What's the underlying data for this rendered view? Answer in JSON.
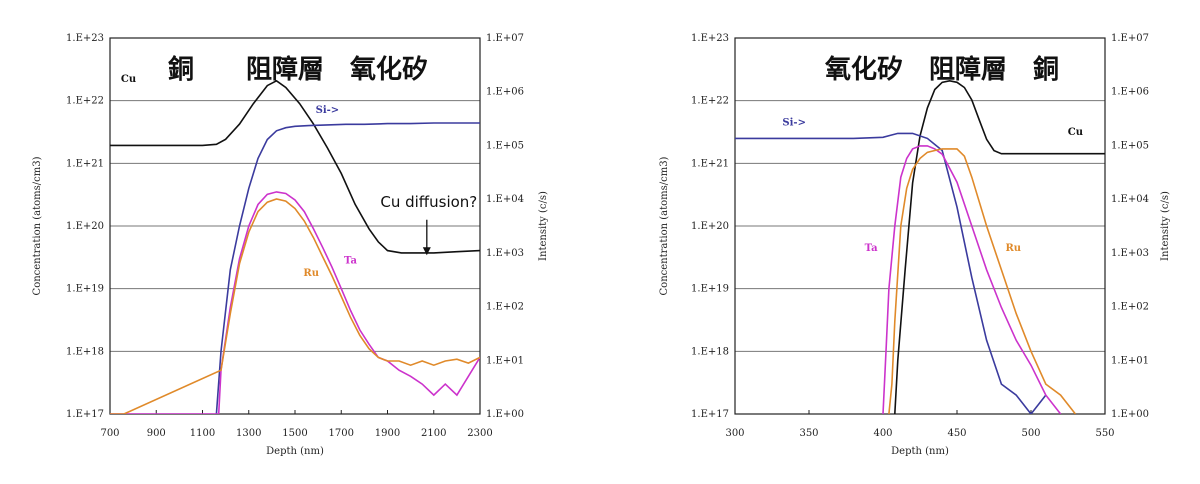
{
  "chart_data": [
    {
      "type": "line",
      "title": "銅　　阻障層　氧化矽",
      "xlabel": "Depth (nm)",
      "ylabel_left": "Concentration (atoms/cm3)",
      "ylabel_right": "Intensity (c/s)",
      "xlim": [
        700,
        2300
      ],
      "x_ticks": [
        "700",
        "900",
        "1100",
        "1300",
        "1500",
        "1700",
        "1900",
        "2100",
        "2300"
      ],
      "left_ticks": [
        "1.E+17",
        "1.E+18",
        "1.E+19",
        "1.E+20",
        "1.E+21",
        "1.E+22",
        "1.E+23"
      ],
      "right_ticks": [
        "1.E+00",
        "1.E+01",
        "1.E+02",
        "1.E+03",
        "1.E+04",
        "1.E+05",
        "1.E+06",
        "1.E+07"
      ],
      "left_log_range": [
        17,
        23
      ],
      "right_log_range": [
        0,
        7
      ],
      "annotation": "Cu diffusion?",
      "annotation_target_x": 2070,
      "series": [
        {
          "name": "Cu",
          "color": "#111111",
          "axis": "right",
          "x": [
            700,
            900,
            1100,
            1160,
            1200,
            1260,
            1320,
            1380,
            1420,
            1460,
            1520,
            1580,
            1640,
            1700,
            1760,
            1820,
            1860,
            1900,
            1960,
            2000,
            2100,
            2200,
            2300
          ],
          "y": [
            100000.0,
            100000.0,
            100000.0,
            105000.0,
            130000.0,
            250000.0,
            600000.0,
            1300000.0,
            1600000.0,
            1200000.0,
            600000.0,
            250000.0,
            90000.0,
            30000.0,
            8000.0,
            2800.0,
            1600.0,
            1100.0,
            1000.0,
            1000.0,
            1000.0,
            1050.0,
            1100.0
          ]
        },
        {
          "name": "Si->",
          "color": "#3b3b9e",
          "axis": "left",
          "x": [
            1160,
            1180,
            1220,
            1260,
            1300,
            1340,
            1380,
            1420,
            1460,
            1500,
            1560,
            1640,
            1720,
            1800,
            1900,
            2000,
            2100,
            2200,
            2300
          ],
          "y": [
            1e+17,
            1e+18,
            2e+19,
            1e+20,
            4e+20,
            1.2e+21,
            2.4e+21,
            3.3e+21,
            3.7e+21,
            3.9e+21,
            4e+21,
            4.1e+21,
            4.2e+21,
            4.2e+21,
            4.3e+21,
            4.3e+21,
            4.4e+21,
            4.4e+21,
            4.4e+21
          ]
        },
        {
          "name": "Ta",
          "color": "#cc33cc",
          "axis": "left",
          "x": [
            700,
            760,
            980,
            1000,
            1150,
            1170,
            1180,
            1220,
            1260,
            1300,
            1340,
            1380,
            1420,
            1460,
            1500,
            1540,
            1580,
            1620,
            1660,
            1700,
            1740,
            1780,
            1820,
            1860,
            1900,
            1950,
            2000,
            2050,
            2100,
            2150,
            2200,
            2250,
            2300
          ],
          "y": [
            1e+17,
            1e+17,
            1e+17,
            1e+17,
            1e+17,
            1e+17,
            5e+17,
            5e+18,
            3e+19,
            1e+20,
            2.2e+20,
            3.2e+20,
            3.5e+20,
            3.3e+20,
            2.6e+20,
            1.7e+20,
            9e+19,
            4.5e+19,
            2.2e+19,
            1e+19,
            4.5e+18,
            2.2e+18,
            1.3e+18,
            8e+17,
            7e+17,
            5e+17,
            4e+17,
            3e+17,
            2e+17,
            3e+17,
            2e+17,
            4e+17,
            8e+17
          ]
        },
        {
          "name": "Ru",
          "color": "#e08a2a",
          "axis": "left",
          "x": [
            700,
            760,
            1180,
            1220,
            1260,
            1300,
            1340,
            1380,
            1420,
            1460,
            1500,
            1540,
            1580,
            1620,
            1660,
            1700,
            1740,
            1780,
            1820,
            1860,
            1900,
            1950,
            2000,
            2050,
            2100,
            2150,
            2200,
            2250,
            2300
          ],
          "y": [
            1e+17,
            1e+17,
            5e+17,
            4e+18,
            2.5e+19,
            8e+19,
            1.7e+20,
            2.4e+20,
            2.7e+20,
            2.5e+20,
            1.9e+20,
            1.2e+20,
            6.5e+19,
            3.2e+19,
            1.6e+19,
            7.5e+18,
            3.5e+18,
            1.8e+18,
            1.1e+18,
            8e+17,
            7e+17,
            7e+17,
            6e+17,
            7e+17,
            6e+17,
            7e+17,
            7.5e+17,
            6.5e+17,
            8e+17
          ]
        }
      ],
      "series_labels": [
        {
          "name": "Cu",
          "at_x": 780,
          "at_log": 22.3,
          "axis": "left"
        },
        {
          "name": "Si->",
          "at_x": 1640,
          "at_log": 21.8,
          "axis": "left"
        },
        {
          "name": "Ta",
          "at_x": 1740,
          "at_log": 19.4,
          "axis": "left"
        },
        {
          "name": "Ru",
          "at_x": 1570,
          "at_log": 19.2,
          "axis": "left"
        }
      ]
    },
    {
      "type": "line",
      "title": "氧化矽　阻障層　銅",
      "xlabel": "Depth (nm)",
      "ylabel_left": "Concentration (atoms/cm3)",
      "ylabel_right": "Intensity (c/s)",
      "xlim": [
        300,
        550
      ],
      "x_ticks": [
        "300",
        "350",
        "400",
        "450",
        "500",
        "550"
      ],
      "left_ticks": [
        "1.E+17",
        "1.E+18",
        "1.E+19",
        "1.E+20",
        "1.E+21",
        "1.E+22",
        "1.E+23"
      ],
      "right_ticks": [
        "1.E+00",
        "1.E+01",
        "1.E+02",
        "1.E+03",
        "1.E+04",
        "1.E+05",
        "1.E+06",
        "1.E+07"
      ],
      "left_log_range": [
        17,
        23
      ],
      "right_log_range": [
        0,
        7
      ],
      "series": [
        {
          "name": "Cu",
          "color": "#111111",
          "axis": "right",
          "x": [
            408,
            410,
            415,
            420,
            425,
            430,
            435,
            440,
            445,
            450,
            455,
            460,
            465,
            470,
            475,
            480,
            490,
            500,
            520,
            550
          ],
          "y": [
            1.0,
            10.0,
            500.0,
            20000.0,
            150000.0,
            500000.0,
            1100000.0,
            1500000.0,
            1600000.0,
            1500000.0,
            1200000.0,
            700000.0,
            300000.0,
            130000.0,
            80000.0,
            70000.0,
            70000.0,
            70000.0,
            70000.0,
            70000.0
          ]
        },
        {
          "name": "Si->",
          "color": "#3b3b9e",
          "axis": "left",
          "x": [
            300,
            350,
            380,
            400,
            410,
            420,
            430,
            440,
            450,
            460,
            470,
            480,
            490,
            500,
            510
          ],
          "y": [
            2.5e+21,
            2.5e+21,
            2.5e+21,
            2.6e+21,
            3e+21,
            3e+21,
            2.5e+21,
            1.6e+21,
            2e+20,
            1.5e+19,
            1.5e+18,
            3e+17,
            2e+17,
            1e+17,
            2e+17
          ]
        },
        {
          "name": "Ta",
          "color": "#cc33cc",
          "axis": "left",
          "x": [
            400,
            402,
            404,
            408,
            412,
            416,
            420,
            425,
            430,
            435,
            440,
            450,
            460,
            470,
            480,
            490,
            500,
            510,
            520
          ],
          "y": [
            1e+17,
            1e+18,
            1e+19,
            1e+20,
            6e+20,
            1.2e+21,
            1.7e+21,
            1.9e+21,
            1.9e+21,
            1.7e+21,
            1.4e+21,
            5e+20,
            1e+20,
            2e+19,
            5e+18,
            1.5e+18,
            6e+17,
            2e+17,
            1e+17
          ]
        },
        {
          "name": "Ru",
          "color": "#e08a2a",
          "axis": "left",
          "x": [
            404,
            406,
            408,
            412,
            416,
            420,
            425,
            430,
            435,
            440,
            445,
            450,
            455,
            460,
            470,
            480,
            490,
            500,
            510,
            520,
            530
          ],
          "y": [
            1e+17,
            3e+17,
            3e+18,
            1e+20,
            4e+20,
            8e+20,
            1.2e+21,
            1.5e+21,
            1.6e+21,
            1.7e+21,
            1.7e+21,
            1.7e+21,
            1.3e+21,
            6e+20,
            1e+20,
            2e+19,
            4e+18,
            1e+18,
            3e+17,
            2e+17,
            1e+17
          ]
        }
      ],
      "series_labels": [
        {
          "name": "Si->",
          "at_x": 340,
          "at_log": 21.6,
          "axis": "left"
        },
        {
          "name": "Cu",
          "at_x": 530,
          "at_log": 21.45,
          "axis": "left"
        },
        {
          "name": "Ta",
          "at_x": 392,
          "at_log": 19.6,
          "axis": "left"
        },
        {
          "name": "Ru",
          "at_x": 488,
          "at_log": 19.6,
          "axis": "left"
        }
      ]
    }
  ]
}
